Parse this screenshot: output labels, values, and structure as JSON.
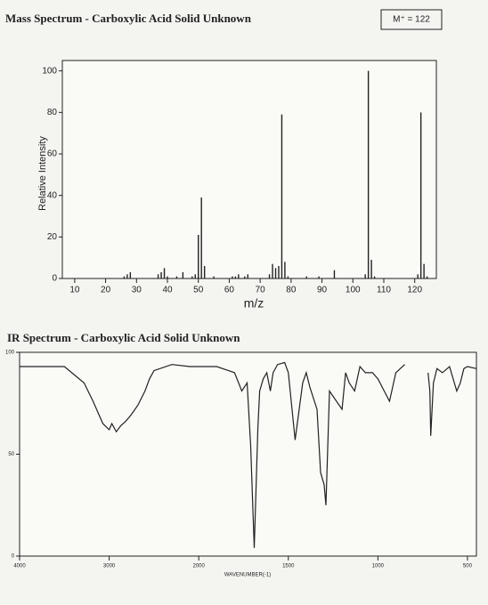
{
  "chart_data": [
    {
      "type": "stick",
      "title": "Mass Spectrum - Carboxylic Acid Solid Unknown",
      "annotation": "M⁺ = 122",
      "x_label": "m/z",
      "y_label": "Relative Intensity",
      "x": [
        26,
        27,
        28,
        37,
        38,
        39,
        40,
        43,
        45,
        48,
        49,
        50,
        51,
        52,
        55,
        61,
        62,
        63,
        65,
        66,
        73,
        74,
        75,
        76,
        77,
        78,
        79,
        85,
        89,
        94,
        104,
        105,
        106,
        107,
        121,
        122,
        123,
        124
      ],
      "values": [
        1,
        2,
        3,
        2,
        3,
        5,
        1,
        1,
        3,
        1,
        2,
        21,
        39,
        6,
        1,
        1,
        1,
        2,
        1,
        2,
        2,
        7,
        5,
        6,
        79,
        8,
        1,
        1,
        1,
        4,
        2,
        100,
        9,
        1,
        2,
        80,
        7,
        1
      ],
      "color": "#222222",
      "xlim": [
        6,
        127
      ],
      "xticks": [
        10,
        20,
        30,
        40,
        50,
        60,
        70,
        80,
        90,
        100,
        110,
        120
      ],
      "ylim": [
        0,
        105
      ],
      "yticks": [
        0,
        20,
        40,
        60,
        80,
        100
      ]
    },
    {
      "type": "line",
      "title": "IR Spectrum - Carboxylic Acid Solid Unknown",
      "x_label": "WAVENUMBER(-1)",
      "x": [
        4000,
        3500,
        3280,
        3180,
        3070,
        3000,
        2970,
        2920,
        2870,
        2820,
        2760,
        2680,
        2600,
        2550,
        2500,
        2300,
        2100,
        2000,
        1900,
        1800,
        1760,
        1730,
        1710,
        1690,
        1670,
        1660,
        1640,
        1620,
        1600,
        1585,
        1560,
        1520,
        1500,
        1462,
        1420,
        1400,
        1380,
        1340,
        1320,
        1300,
        1290,
        1270,
        1200,
        1180,
        1160,
        1130,
        1100,
        1070,
        1030,
        1000,
        935,
        900,
        850,
        780,
        720,
        710,
        705,
        690,
        670,
        640,
        600,
        560,
        540,
        520,
        500,
        450
      ],
      "values": [
        93,
        93,
        85,
        76,
        65,
        62,
        65,
        61,
        64,
        66,
        69,
        74,
        81,
        87,
        91,
        94,
        93,
        93,
        93,
        90,
        81,
        85,
        54,
        4,
        63,
        81,
        87,
        90,
        81,
        90,
        94,
        95,
        90,
        57,
        85,
        90,
        83,
        72,
        41,
        35,
        25,
        81,
        72,
        90,
        85,
        81,
        93,
        90,
        90,
        87,
        76,
        90,
        94,
        null,
        90,
        81,
        59,
        85,
        92,
        90,
        93,
        81,
        85,
        92,
        93,
        92
      ],
      "color": "#222222",
      "xlim": [
        4000,
        450
      ],
      "xticks": [
        4000,
        3000,
        2000,
        1500,
        1000,
        500
      ],
      "ylim": [
        0,
        100
      ],
      "yticks": [
        0,
        50,
        100
      ]
    }
  ]
}
